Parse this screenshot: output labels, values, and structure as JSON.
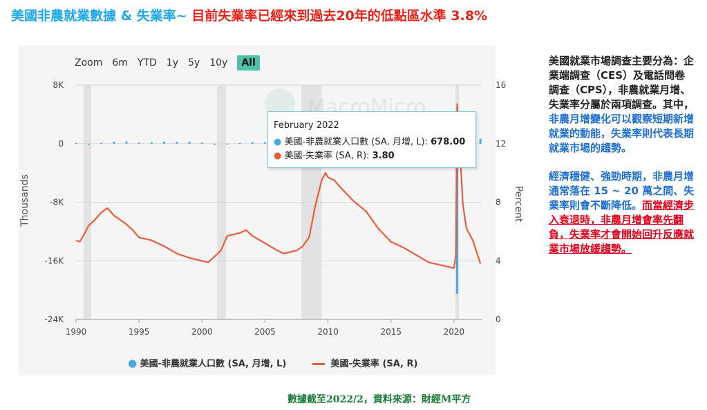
{
  "headline": {
    "part1": "美國非農就業數據 & 失業率~ ",
    "part2": "目前失業率已經來到過去20年的低點區水準 3.8%"
  },
  "range_selector": [
    "Zoom",
    "6m",
    "YTD",
    "1y",
    "5y",
    "10y",
    "All"
  ],
  "active_range": "All",
  "watermark": "MacroMicro",
  "tooltip": {
    "date": "February 2022",
    "series1_label": "美國-非農就業人口數 (SA, 月增, L): ",
    "series1_value": "678.00",
    "series2_label": "美國-失業率 (SA, R): ",
    "series2_value": "3.80"
  },
  "legend": {
    "series1": "美國-非農就業人口數 (SA, 月增, L)",
    "series2": "美國-失業率 (SA, R)"
  },
  "side_text": {
    "p1_normal": "美國就業市場調查主要分為：企業端調查（CES）及電話問卷調查（CPS），非農就業月增、失業率分屬於兩項調查。其中，",
    "p1_blue": "非農月增變化可以觀察短期新增就業的動能，失業率則代表長期就業市場的趨勢。",
    "p2_blue": "經濟穩健、強勁時期，非農月增通常落在 15 ~ 20 萬之間、失業率則會不斷降低。",
    "p2_red": "而當經濟步入衰退時，非農月增會率先翻負，失業率才會開始回升反應就業市場放緩趨勢。"
  },
  "source": "數據截至2022/2，資料來源：財經M平方",
  "colors": {
    "series1": "#4aa8dc",
    "series2": "#e85c3c",
    "recession": "#e2e2e2",
    "active_button": "#4fc3a7"
  },
  "chart_data": {
    "type": "line",
    "x_ticks": [
      1990,
      1995,
      2000,
      2005,
      2010,
      2015,
      2020
    ],
    "xlim": [
      1990,
      2022.2
    ],
    "y_left": {
      "label": "Thousands",
      "ticks": [
        "8K",
        "0",
        "-8K",
        "-16K",
        "-24K"
      ],
      "values": [
        8000,
        0,
        -8000,
        -16000,
        -24000
      ],
      "lim": [
        -24000,
        8000
      ]
    },
    "y_right": {
      "label": "Percent",
      "ticks": [
        "16",
        "12",
        "8",
        "4",
        "0"
      ],
      "values": [
        16,
        12,
        8,
        4,
        0
      ],
      "lim": [
        0,
        16
      ]
    },
    "recessions": [
      [
        1990.6,
        1991.2
      ],
      [
        2001.2,
        2001.9
      ],
      [
        2007.9,
        2009.5
      ],
      [
        2020.1,
        2020.4
      ]
    ],
    "series": [
      {
        "name": "美國-非農就業人口數 (SA, 月增, L)",
        "type": "bar",
        "x": [
          1990,
          1991,
          1992,
          1993,
          1994,
          1995,
          1996,
          1997,
          1998,
          1999,
          2000,
          2001,
          2002,
          2003,
          2004,
          2005,
          2006,
          2007,
          2008,
          2009,
          2010,
          2011,
          2012,
          2013,
          2014,
          2015,
          2016,
          2017,
          2018,
          2019,
          2020.0,
          2020.25,
          2020.42,
          2020.6,
          2021,
          2022.1
        ],
        "values": [
          100,
          -150,
          100,
          250,
          300,
          150,
          200,
          280,
          250,
          270,
          150,
          -150,
          -50,
          80,
          200,
          210,
          170,
          90,
          -300,
          -450,
          90,
          170,
          180,
          200,
          250,
          230,
          190,
          180,
          200,
          170,
          200,
          -20500,
          2800,
          1500,
          550,
          678
        ]
      },
      {
        "name": "美國-失業率 (SA, R)",
        "type": "line",
        "x": [
          1990,
          1990.3,
          1990.7,
          1991,
          1991.5,
          1992,
          1992.5,
          1993,
          1993.5,
          1994,
          1994.5,
          1995,
          1996,
          1997,
          1998,
          1999,
          2000,
          2000.5,
          2001,
          2001.5,
          2002,
          2002.5,
          2003,
          2003.5,
          2004,
          2005,
          2006,
          2006.5,
          2007,
          2007.5,
          2008,
          2008.5,
          2009,
          2009.5,
          2009.8,
          2010,
          2010.5,
          2011,
          2012,
          2013,
          2014,
          2015,
          2016,
          2017,
          2018,
          2019,
          2019.5,
          2020,
          2020.15,
          2020.25,
          2020.33,
          2020.5,
          2020.7,
          2020.9,
          2021,
          2021.5,
          2022.1
        ],
        "values": [
          5.4,
          5.3,
          5.9,
          6.4,
          6.8,
          7.3,
          7.6,
          7.1,
          6.8,
          6.5,
          6.1,
          5.6,
          5.4,
          5.0,
          4.5,
          4.2,
          4.0,
          3.9,
          4.3,
          4.7,
          5.7,
          5.8,
          5.9,
          6.1,
          5.7,
          5.2,
          4.7,
          4.5,
          4.6,
          4.7,
          5.0,
          5.6,
          7.8,
          9.5,
          10.0,
          9.7,
          9.5,
          9.0,
          8.1,
          7.4,
          6.2,
          5.3,
          4.9,
          4.4,
          3.9,
          3.7,
          3.6,
          3.5,
          4.4,
          14.7,
          13.3,
          11.1,
          7.9,
          6.7,
          6.2,
          5.4,
          3.8
        ]
      }
    ]
  }
}
